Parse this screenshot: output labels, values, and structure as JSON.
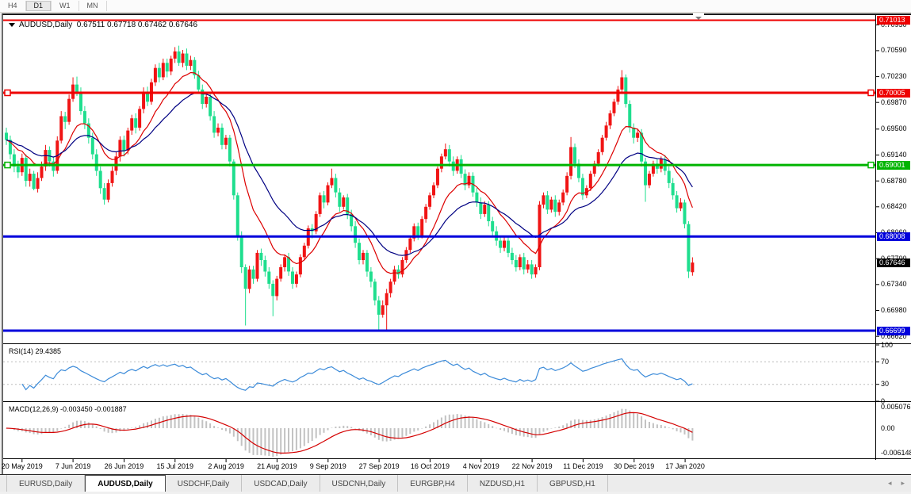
{
  "timeframe_toolbar": {
    "items": [
      "H4",
      "D1",
      "W1",
      "MN"
    ],
    "active_index": 1
  },
  "chart": {
    "title": {
      "symbol": "AUDUSD,Daily",
      "open": "0.67511",
      "high": "0.67718",
      "low": "0.67462",
      "close": "0.67646"
    },
    "price_axis": {
      "ticks": [
        "0.70950",
        "0.70590",
        "0.70230",
        "0.69870",
        "0.69500",
        "0.69140",
        "0.68780",
        "0.68420",
        "0.68060",
        "0.67700",
        "0.67340",
        "0.66980",
        "0.66620"
      ]
    },
    "levels": [
      {
        "label": "0.71013",
        "price": 0.71013,
        "color": "#ee0000",
        "width": 2,
        "handles": false
      },
      {
        "label": "0.70005",
        "price": 0.70005,
        "color": "#ee0000",
        "width": 3,
        "handles": true
      },
      {
        "label": "0.69001",
        "price": 0.69001,
        "color": "#00b400",
        "width": 3,
        "handles": true
      },
      {
        "label": "0.68008",
        "price": 0.68008,
        "color": "#0000dc",
        "width": 3,
        "handles": false
      },
      {
        "label": "0.66699",
        "price": 0.66699,
        "color": "#0000dc",
        "width": 3,
        "handles": false
      }
    ],
    "current_price": {
      "label": "0.67646",
      "price": 0.67646,
      "bg": "#000000"
    },
    "time_axis": {
      "labels": [
        "20 May 2019",
        "7 Jun 2019",
        "26 Jun 2019",
        "15 Jul 2019",
        "2 Aug 2019",
        "21 Aug 2019",
        "9 Sep 2019",
        "27 Sep 2019",
        "16 Oct 2019",
        "4 Nov 2019",
        "22 Nov 2019",
        "11 Dec 2019",
        "30 Dec 2019",
        "17 Jan 2020"
      ]
    },
    "ma_fast_period": 12,
    "ma_slow_period": 26,
    "candles": [
      [
        0.6945,
        0.6952,
        0.6928,
        0.6935
      ],
      [
        0.6935,
        0.6941,
        0.6908,
        0.6915
      ],
      [
        0.6915,
        0.6922,
        0.689,
        0.6898
      ],
      [
        0.6898,
        0.6906,
        0.6882,
        0.689
      ],
      [
        0.689,
        0.6916,
        0.6885,
        0.691
      ],
      [
        0.691,
        0.6915,
        0.687,
        0.6878
      ],
      [
        0.6878,
        0.6895,
        0.687,
        0.6888
      ],
      [
        0.6888,
        0.6892,
        0.6865,
        0.6867
      ],
      [
        0.6867,
        0.689,
        0.6862,
        0.6882
      ],
      [
        0.6882,
        0.6905,
        0.6878,
        0.6898
      ],
      [
        0.6898,
        0.6928,
        0.6892,
        0.6921
      ],
      [
        0.6921,
        0.6926,
        0.6898,
        0.6905
      ],
      [
        0.6905,
        0.6912,
        0.6884,
        0.6892
      ],
      [
        0.6892,
        0.694,
        0.6888,
        0.6934
      ],
      [
        0.6934,
        0.6975,
        0.693,
        0.6968
      ],
      [
        0.6968,
        0.6974,
        0.695,
        0.696
      ],
      [
        0.696,
        0.6998,
        0.6956,
        0.6992
      ],
      [
        0.6992,
        0.7022,
        0.6988,
        0.7012
      ],
      [
        0.7012,
        0.7023,
        0.6996,
        0.7002
      ],
      [
        0.7002,
        0.7008,
        0.697,
        0.6975
      ],
      [
        0.6975,
        0.6982,
        0.695,
        0.6958
      ],
      [
        0.6958,
        0.6965,
        0.693,
        0.6938
      ],
      [
        0.6938,
        0.6945,
        0.6908,
        0.6915
      ],
      [
        0.6915,
        0.6922,
        0.6885,
        0.6892
      ],
      [
        0.6892,
        0.6898,
        0.686,
        0.6868
      ],
      [
        0.6868,
        0.6875,
        0.6845,
        0.6852
      ],
      [
        0.6852,
        0.688,
        0.6848,
        0.6875
      ],
      [
        0.6875,
        0.6898,
        0.687,
        0.6892
      ],
      [
        0.6892,
        0.6918,
        0.6886,
        0.6912
      ],
      [
        0.6912,
        0.694,
        0.6905,
        0.6935
      ],
      [
        0.6935,
        0.6941,
        0.6912,
        0.692
      ],
      [
        0.692,
        0.6952,
        0.6915,
        0.6948
      ],
      [
        0.6948,
        0.697,
        0.6942,
        0.6965
      ],
      [
        0.6965,
        0.6972,
        0.6944,
        0.6952
      ],
      [
        0.6952,
        0.6982,
        0.6948,
        0.6978
      ],
      [
        0.6978,
        0.7008,
        0.6972,
        0.7002
      ],
      [
        0.7002,
        0.7009,
        0.6982,
        0.6988
      ],
      [
        0.6988,
        0.702,
        0.6984,
        0.7015
      ],
      [
        0.7015,
        0.704,
        0.701,
        0.7035
      ],
      [
        0.7035,
        0.7042,
        0.7015,
        0.7022
      ],
      [
        0.7022,
        0.7048,
        0.7018,
        0.7042
      ],
      [
        0.7042,
        0.7048,
        0.7022,
        0.703
      ],
      [
        0.703,
        0.7052,
        0.7025,
        0.7048
      ],
      [
        0.7048,
        0.7064,
        0.7042,
        0.7058
      ],
      [
        0.7058,
        0.7066,
        0.7038,
        0.7042
      ],
      [
        0.7042,
        0.706,
        0.7036,
        0.7055
      ],
      [
        0.7055,
        0.7062,
        0.7032,
        0.7038
      ],
      [
        0.7038,
        0.7052,
        0.7032,
        0.7046
      ],
      [
        0.7046,
        0.705,
        0.702,
        0.7025
      ],
      [
        0.7025,
        0.7031,
        0.6999,
        0.7005
      ],
      [
        0.7005,
        0.7012,
        0.6978,
        0.6985
      ],
      [
        0.6985,
        0.7,
        0.698,
        0.6995
      ],
      [
        0.6995,
        0.7,
        0.6962,
        0.6968
      ],
      [
        0.6968,
        0.6975,
        0.6938,
        0.6945
      ],
      [
        0.6945,
        0.6958,
        0.694,
        0.6952
      ],
      [
        0.6952,
        0.6958,
        0.6922,
        0.6928
      ],
      [
        0.6928,
        0.6942,
        0.6922,
        0.6938
      ],
      [
        0.6938,
        0.6942,
        0.6898,
        0.6905
      ],
      [
        0.6905,
        0.6908,
        0.6852,
        0.6858
      ],
      [
        0.6858,
        0.6862,
        0.6795,
        0.6802
      ],
      [
        0.6802,
        0.6808,
        0.675,
        0.6758
      ],
      [
        0.6758,
        0.6762,
        0.6677,
        0.6728
      ],
      [
        0.6728,
        0.676,
        0.6722,
        0.6755
      ],
      [
        0.6755,
        0.676,
        0.6735,
        0.6742
      ],
      [
        0.6742,
        0.6782,
        0.6738,
        0.6778
      ],
      [
        0.6778,
        0.6784,
        0.676,
        0.6768
      ],
      [
        0.6768,
        0.6774,
        0.6745,
        0.6752
      ],
      [
        0.6752,
        0.6758,
        0.6728,
        0.6735
      ],
      [
        0.6735,
        0.674,
        0.669,
        0.6718
      ],
      [
        0.6718,
        0.6746,
        0.6712,
        0.6742
      ],
      [
        0.6742,
        0.6762,
        0.6738,
        0.6758
      ],
      [
        0.6758,
        0.6776,
        0.6752,
        0.6772
      ],
      [
        0.6772,
        0.6778,
        0.6746,
        0.6752
      ],
      [
        0.6752,
        0.6758,
        0.6728,
        0.6735
      ],
      [
        0.6735,
        0.6752,
        0.673,
        0.6748
      ],
      [
        0.6748,
        0.6776,
        0.6744,
        0.6772
      ],
      [
        0.6772,
        0.6792,
        0.6768,
        0.6788
      ],
      [
        0.6788,
        0.6816,
        0.6784,
        0.6812
      ],
      [
        0.6812,
        0.6818,
        0.6798,
        0.6808
      ],
      [
        0.6808,
        0.6836,
        0.6804,
        0.6832
      ],
      [
        0.6832,
        0.6862,
        0.6828,
        0.6858
      ],
      [
        0.6858,
        0.6864,
        0.684,
        0.6848
      ],
      [
        0.6848,
        0.6876,
        0.6844,
        0.6872
      ],
      [
        0.6872,
        0.6895,
        0.6868,
        0.6882
      ],
      [
        0.6882,
        0.6888,
        0.6855,
        0.6862
      ],
      [
        0.6862,
        0.6868,
        0.6835,
        0.6842
      ],
      [
        0.6842,
        0.6858,
        0.6838,
        0.6855
      ],
      [
        0.6855,
        0.686,
        0.6825,
        0.6832
      ],
      [
        0.6832,
        0.6838,
        0.6808,
        0.6815
      ],
      [
        0.6815,
        0.6822,
        0.6785,
        0.6792
      ],
      [
        0.6792,
        0.6798,
        0.6762,
        0.6768
      ],
      [
        0.6768,
        0.6782,
        0.6762,
        0.6778
      ],
      [
        0.6778,
        0.6782,
        0.6745,
        0.6752
      ],
      [
        0.6752,
        0.6758,
        0.673,
        0.6738
      ],
      [
        0.6738,
        0.6742,
        0.6705,
        0.6712
      ],
      [
        0.6712,
        0.6718,
        0.66705,
        0.6692
      ],
      [
        0.6692,
        0.6712,
        0.6688,
        0.6705
      ],
      [
        0.6705,
        0.6728,
        0.6671,
        0.6722
      ],
      [
        0.6722,
        0.6742,
        0.6716,
        0.6738
      ],
      [
        0.6738,
        0.676,
        0.6734,
        0.6755
      ],
      [
        0.6755,
        0.6761,
        0.6742,
        0.6748
      ],
      [
        0.6748,
        0.6772,
        0.6744,
        0.6768
      ],
      [
        0.6768,
        0.6786,
        0.6764,
        0.6782
      ],
      [
        0.6782,
        0.6802,
        0.6778,
        0.6798
      ],
      [
        0.6798,
        0.6819,
        0.6794,
        0.6815
      ],
      [
        0.6815,
        0.682,
        0.6796,
        0.6802
      ],
      [
        0.6802,
        0.6829,
        0.6798,
        0.6825
      ],
      [
        0.6825,
        0.6846,
        0.682,
        0.6842
      ],
      [
        0.6842,
        0.6862,
        0.6838,
        0.6858
      ],
      [
        0.6858,
        0.6876,
        0.6854,
        0.6872
      ],
      [
        0.6872,
        0.6898,
        0.6868,
        0.6895
      ],
      [
        0.6895,
        0.6916,
        0.689,
        0.6912
      ],
      [
        0.6912,
        0.693,
        0.6908,
        0.6922
      ],
      [
        0.6922,
        0.6928,
        0.6898,
        0.6905
      ],
      [
        0.6905,
        0.6912,
        0.6885,
        0.6892
      ],
      [
        0.6892,
        0.6912,
        0.6888,
        0.6908
      ],
      [
        0.6908,
        0.6914,
        0.6882,
        0.6888
      ],
      [
        0.6888,
        0.6894,
        0.6865,
        0.6872
      ],
      [
        0.6872,
        0.689,
        0.6868,
        0.6885
      ],
      [
        0.6885,
        0.689,
        0.6856,
        0.6862
      ],
      [
        0.6862,
        0.6868,
        0.6842,
        0.6848
      ],
      [
        0.6848,
        0.6855,
        0.6825,
        0.6832
      ],
      [
        0.6832,
        0.685,
        0.6828,
        0.6845
      ],
      [
        0.6845,
        0.685,
        0.6815,
        0.6822
      ],
      [
        0.6822,
        0.6828,
        0.6802,
        0.6808
      ],
      [
        0.6808,
        0.6815,
        0.6788,
        0.6795
      ],
      [
        0.6795,
        0.6802,
        0.6778,
        0.6785
      ],
      [
        0.6785,
        0.68,
        0.678,
        0.6795
      ],
      [
        0.6795,
        0.68,
        0.6772,
        0.6778
      ],
      [
        0.6778,
        0.6785,
        0.6762,
        0.6768
      ],
      [
        0.6768,
        0.6775,
        0.6752,
        0.6758
      ],
      [
        0.6758,
        0.6776,
        0.6754,
        0.6772
      ],
      [
        0.6772,
        0.6778,
        0.6748,
        0.6755
      ],
      [
        0.6755,
        0.6768,
        0.675,
        0.6762
      ],
      [
        0.6762,
        0.6768,
        0.6742,
        0.6748
      ],
      [
        0.6748,
        0.6762,
        0.67435,
        0.6758
      ],
      [
        0.6758,
        0.685,
        0.6754,
        0.6845
      ],
      [
        0.6845,
        0.6862,
        0.684,
        0.6858
      ],
      [
        0.6858,
        0.6864,
        0.6832,
        0.6838
      ],
      [
        0.6838,
        0.6856,
        0.6834,
        0.6852
      ],
      [
        0.6852,
        0.6858,
        0.6828,
        0.6835
      ],
      [
        0.6835,
        0.6852,
        0.683,
        0.6848
      ],
      [
        0.6848,
        0.6866,
        0.6844,
        0.6862
      ],
      [
        0.6862,
        0.689,
        0.6858,
        0.6885
      ],
      [
        0.6885,
        0.6939,
        0.688,
        0.6925
      ],
      [
        0.6925,
        0.693,
        0.6896,
        0.6902
      ],
      [
        0.6902,
        0.6908,
        0.6876,
        0.6882
      ],
      [
        0.6882,
        0.6888,
        0.6852,
        0.6858
      ],
      [
        0.6858,
        0.6872,
        0.6854,
        0.6868
      ],
      [
        0.6868,
        0.6892,
        0.6864,
        0.6888
      ],
      [
        0.6888,
        0.6906,
        0.6884,
        0.6902
      ],
      [
        0.6902,
        0.6922,
        0.6898,
        0.6918
      ],
      [
        0.6918,
        0.6942,
        0.6914,
        0.6938
      ],
      [
        0.6938,
        0.696,
        0.6934,
        0.6955
      ],
      [
        0.6955,
        0.6976,
        0.695,
        0.6972
      ],
      [
        0.6972,
        0.6992,
        0.6968,
        0.6988
      ],
      [
        0.6988,
        0.701,
        0.6984,
        0.7005
      ],
      [
        0.7005,
        0.7032,
        0.7,
        0.7022
      ],
      [
        0.7022,
        0.7026,
        0.698,
        0.6985
      ],
      [
        0.6985,
        0.699,
        0.6945,
        0.6952
      ],
      [
        0.6952,
        0.6958,
        0.693,
        0.6938
      ],
      [
        0.6938,
        0.695,
        0.6932,
        0.6945
      ],
      [
        0.6945,
        0.695,
        0.6898,
        0.6905
      ],
      [
        0.6905,
        0.691,
        0.6849,
        0.6872
      ],
      [
        0.6872,
        0.6892,
        0.6868,
        0.6888
      ],
      [
        0.6888,
        0.6906,
        0.6884,
        0.6902
      ],
      [
        0.6902,
        0.6908,
        0.6888,
        0.6895
      ],
      [
        0.6895,
        0.6912,
        0.689,
        0.6908
      ],
      [
        0.6908,
        0.6914,
        0.6886,
        0.6892
      ],
      [
        0.6892,
        0.6898,
        0.6868,
        0.6875
      ],
      [
        0.6875,
        0.6882,
        0.6852,
        0.6858
      ],
      [
        0.6858,
        0.6864,
        0.6834,
        0.684
      ],
      [
        0.684,
        0.6854,
        0.6836,
        0.6848
      ],
      [
        0.6848,
        0.6852,
        0.6812,
        0.6818
      ],
      [
        0.6818,
        0.6822,
        0.6743,
        0.6752
      ],
      [
        0.67511,
        0.67718,
        0.67462,
        0.67646
      ]
    ]
  },
  "rsi_panel": {
    "label": "RSI(14)",
    "value": "29.4385",
    "ticks": [
      {
        "label": "100",
        "value": 100
      },
      {
        "label": "70",
        "value": 70
      },
      {
        "label": "30",
        "value": 30
      },
      {
        "label": "0",
        "value": 0
      }
    ],
    "guide_levels": [
      70,
      30
    ]
  },
  "macd_panel": {
    "label": "MACD(12,26,9)",
    "value_main": "-0.003450",
    "value_signal": "-0.001887",
    "ticks": [
      {
        "label": "0.005076",
        "pos": "top"
      },
      {
        "label": "0.00",
        "pos": "zero"
      },
      {
        "label": "-0.006148",
        "pos": "bottom"
      }
    ]
  },
  "bottom_tabs": {
    "items": [
      "EURUSD,Daily",
      "AUDUSD,Daily",
      "USDCHF,Daily",
      "USDCAD,Daily",
      "USDCNH,Daily",
      "EURGBP,H4",
      "NZDUSD,H1",
      "GBPUSD,H1"
    ],
    "active_index": 1,
    "scroll_left_icon": "◂",
    "scroll_right_icon": "▸"
  },
  "colors": {
    "bull": "#f01414",
    "bear": "#1ede8e",
    "ma_fast": "#dd0000",
    "ma_slow": "#000082",
    "rsi": "#3c8bd9",
    "guide_dash": "#bbbbbb",
    "macd_hist": "#c2c2c2",
    "macd_signal": "#d40000",
    "separator": "#000000"
  }
}
